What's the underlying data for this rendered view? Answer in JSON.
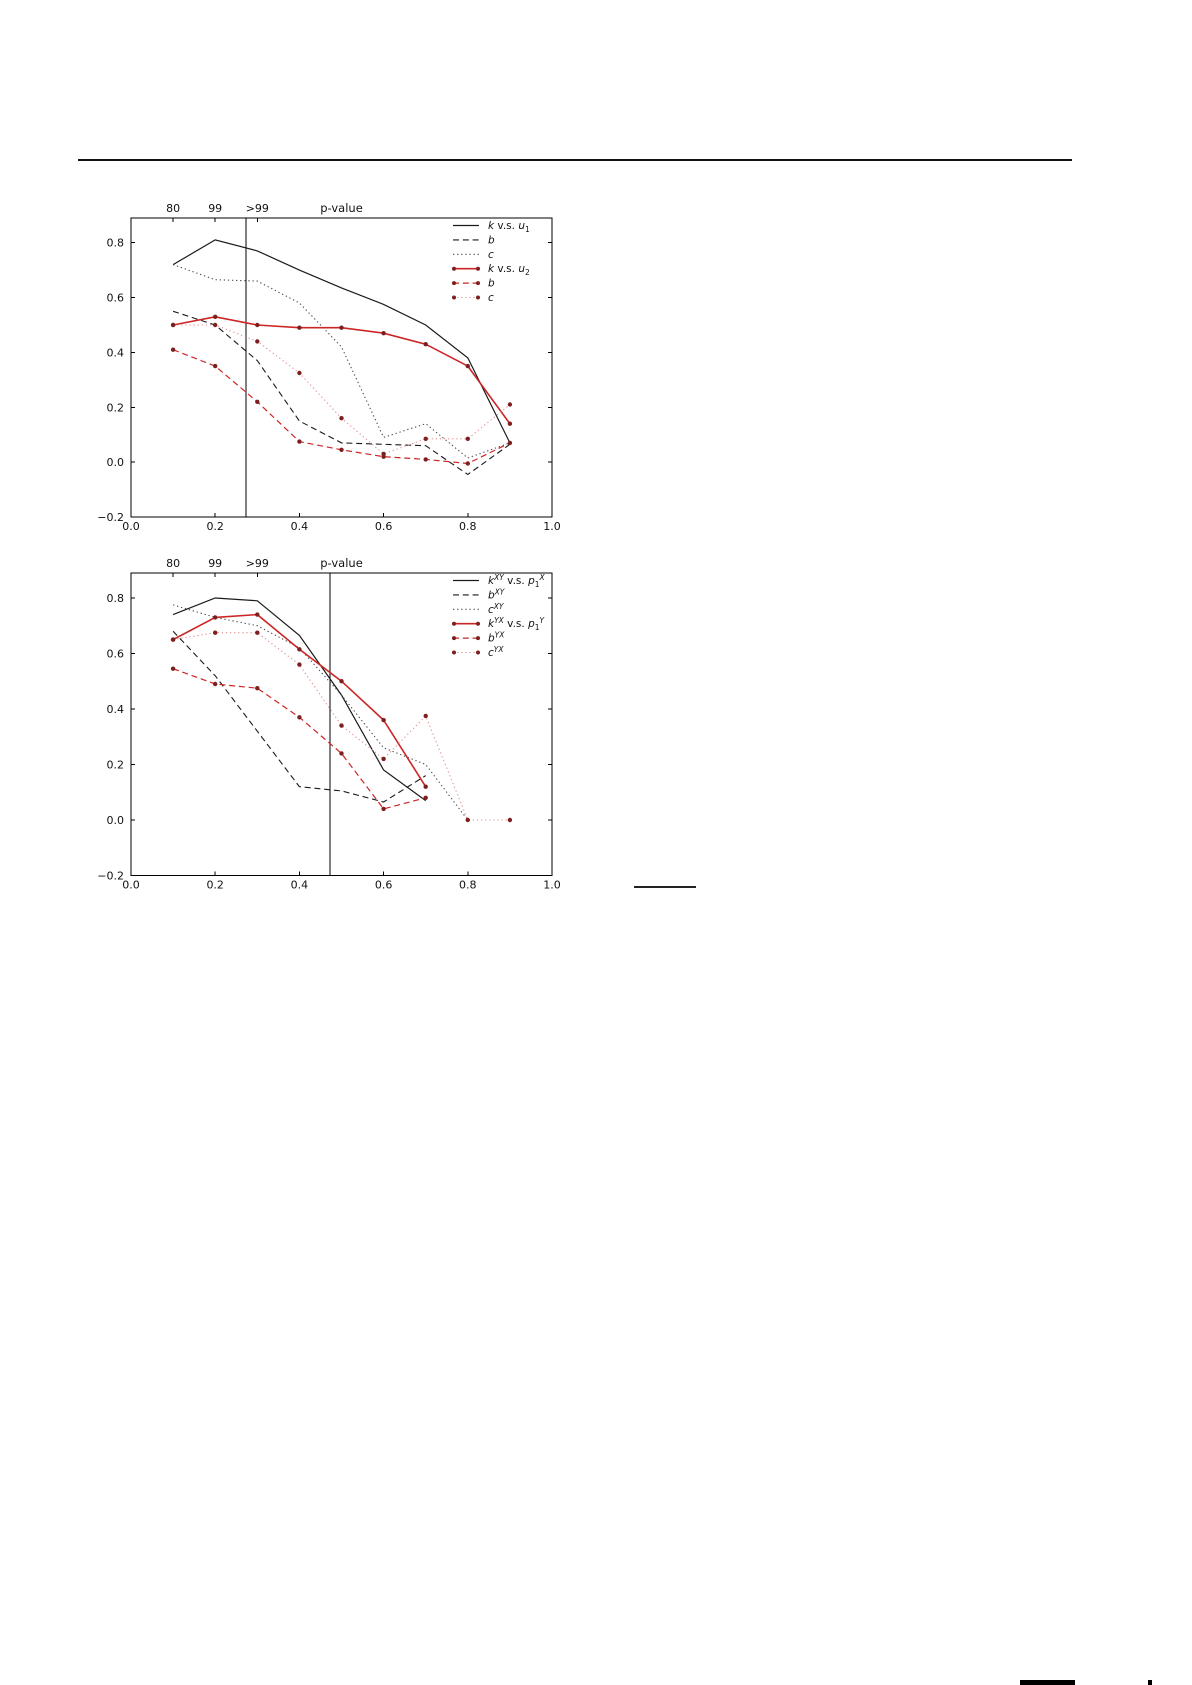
{
  "page": {
    "background": "#ffffff"
  },
  "colors": {
    "axis": "#000000",
    "black_solid": "#1a1a1a",
    "black_dashed": "#1a1a1a",
    "grey_dotted": "#4a4a4a",
    "red_solid": "#cc2525",
    "red_dashed": "#cc2525",
    "pink_dotted": "#e59393",
    "marker": "#7d1f1f"
  },
  "chart_data": [
    {
      "type": "line",
      "top_axis": {
        "title": "p-value",
        "title_x": 0.5,
        "ticks": [
          {
            "v": 0.1,
            "label": "80"
          },
          {
            "v": 0.2,
            "label": "99"
          },
          {
            "v": 0.3,
            "label": ">99"
          }
        ]
      },
      "xlim": [
        0.0,
        1.0
      ],
      "ylim": [
        -0.2,
        0.89
      ],
      "xticks": [
        {
          "v": 0.0,
          "label": "0.0"
        },
        {
          "v": 0.2,
          "label": "0.2"
        },
        {
          "v": 0.4,
          "label": "0.4"
        },
        {
          "v": 0.6,
          "label": "0.6"
        },
        {
          "v": 0.8,
          "label": "0.8"
        },
        {
          "v": 1.0,
          "label": "1.0"
        }
      ],
      "yticks": [
        {
          "v": -0.2,
          "label": "−0.2"
        },
        {
          "v": 0.0,
          "label": "0.0"
        },
        {
          "v": 0.2,
          "label": "0.2"
        },
        {
          "v": 0.4,
          "label": "0.4"
        },
        {
          "v": 0.6,
          "label": "0.6"
        },
        {
          "v": 0.8,
          "label": "0.8"
        }
      ],
      "vline_x": 0.273,
      "grid": false,
      "legend_position": "upper-right",
      "series": [
        {
          "id": "k-vs-u1",
          "colorKey": "black_solid",
          "dash": "solid",
          "width": 1.2,
          "markers": false,
          "label_parts": [
            {
              "t": "k",
              "s": "i"
            },
            {
              "t": " v.s. ",
              "s": "r"
            },
            {
              "t": "u",
              "s": "i"
            },
            {
              "t": "1",
              "s": "sub"
            }
          ],
          "x": [
            0.1,
            0.2,
            0.3,
            0.4,
            0.5,
            0.6,
            0.7,
            0.8,
            0.9
          ],
          "y": [
            0.72,
            0.81,
            0.77,
            0.7,
            0.635,
            0.575,
            0.5,
            0.38,
            0.07
          ]
        },
        {
          "id": "b-black",
          "colorKey": "black_dashed",
          "dash": "dashed",
          "width": 1.1,
          "markers": false,
          "label_parts": [
            {
              "t": "b",
              "s": "i"
            }
          ],
          "x": [
            0.1,
            0.2,
            0.3,
            0.4,
            0.5,
            0.6,
            0.7,
            0.8,
            0.9
          ],
          "y": [
            0.55,
            0.5,
            0.37,
            0.15,
            0.07,
            0.065,
            0.06,
            -0.045,
            0.065
          ]
        },
        {
          "id": "c-black",
          "colorKey": "grey_dotted",
          "dash": "dotted",
          "width": 1.1,
          "markers": false,
          "label_parts": [
            {
              "t": "c",
              "s": "i"
            }
          ],
          "x": [
            0.1,
            0.2,
            0.3,
            0.4,
            0.5,
            0.6,
            0.7,
            0.8,
            0.9
          ],
          "y": [
            0.72,
            0.665,
            0.66,
            0.58,
            0.42,
            0.09,
            0.14,
            0.015,
            0.07
          ]
        },
        {
          "id": "k-vs-u2",
          "colorKey": "red_solid",
          "dash": "solid",
          "width": 1.6,
          "markers": true,
          "label_parts": [
            {
              "t": "k",
              "s": "i"
            },
            {
              "t": " v.s. ",
              "s": "r"
            },
            {
              "t": "u",
              "s": "i"
            },
            {
              "t": "2",
              "s": "sub"
            }
          ],
          "x": [
            0.1,
            0.2,
            0.3,
            0.4,
            0.5,
            0.6,
            0.7,
            0.8,
            0.9
          ],
          "y": [
            0.5,
            0.53,
            0.5,
            0.49,
            0.49,
            0.47,
            0.43,
            0.35,
            0.14
          ]
        },
        {
          "id": "b-red",
          "colorKey": "red_dashed",
          "dash": "dashed",
          "width": 1.2,
          "markers": true,
          "label_parts": [
            {
              "t": "b",
              "s": "i"
            }
          ],
          "x": [
            0.1,
            0.2,
            0.3,
            0.4,
            0.5,
            0.6,
            0.7,
            0.8,
            0.9
          ],
          "y": [
            0.41,
            0.35,
            0.22,
            0.075,
            0.045,
            0.02,
            0.01,
            -0.005,
            0.07
          ]
        },
        {
          "id": "c-red",
          "colorKey": "pink_dotted",
          "dash": "dotted",
          "width": 1.1,
          "markers": true,
          "label_parts": [
            {
              "t": "c",
              "s": "i"
            }
          ],
          "x": [
            0.1,
            0.2,
            0.3,
            0.4,
            0.5,
            0.6,
            0.7,
            0.8,
            0.9
          ],
          "y": [
            0.5,
            0.5,
            0.44,
            0.325,
            0.16,
            0.03,
            0.085,
            0.085,
            0.21
          ]
        }
      ]
    },
    {
      "type": "line",
      "top_axis": {
        "title": "p-value",
        "title_x": 0.5,
        "ticks": [
          {
            "v": 0.1,
            "label": "80"
          },
          {
            "v": 0.2,
            "label": "99"
          },
          {
            "v": 0.3,
            "label": ">99"
          }
        ]
      },
      "xlim": [
        0.0,
        1.0
      ],
      "ylim": [
        -0.2,
        0.89
      ],
      "xticks": [
        {
          "v": 0.0,
          "label": "0.0"
        },
        {
          "v": 0.2,
          "label": "0.2"
        },
        {
          "v": 0.4,
          "label": "0.4"
        },
        {
          "v": 0.6,
          "label": "0.6"
        },
        {
          "v": 0.8,
          "label": "0.8"
        },
        {
          "v": 1.0,
          "label": "1.0"
        }
      ],
      "yticks": [
        {
          "v": -0.2,
          "label": "−0.2"
        },
        {
          "v": 0.0,
          "label": "0.0"
        },
        {
          "v": 0.2,
          "label": "0.2"
        },
        {
          "v": 0.4,
          "label": "0.4"
        },
        {
          "v": 0.6,
          "label": "0.6"
        },
        {
          "v": 0.8,
          "label": "0.8"
        }
      ],
      "vline_x": 0.473,
      "grid": false,
      "legend_position": "upper-right",
      "series": [
        {
          "id": "kXY-vs-p1X",
          "colorKey": "black_solid",
          "dash": "solid",
          "width": 1.2,
          "markers": false,
          "label_parts": [
            {
              "t": "k",
              "s": "i"
            },
            {
              "t": "XY",
              "s": "isup"
            },
            {
              "t": " v.s. ",
              "s": "r"
            },
            {
              "t": "p",
              "s": "i"
            },
            {
              "t": "1",
              "s": "sub"
            },
            {
              "t": "X",
              "s": "isup"
            }
          ],
          "x": [
            0.1,
            0.2,
            0.3,
            0.4,
            0.5,
            0.6,
            0.7
          ],
          "y": [
            0.74,
            0.8,
            0.79,
            0.665,
            0.45,
            0.18,
            0.07
          ]
        },
        {
          "id": "bXY",
          "colorKey": "black_dashed",
          "dash": "dashed",
          "width": 1.1,
          "markers": false,
          "label_parts": [
            {
              "t": "b",
              "s": "i"
            },
            {
              "t": "XY",
              "s": "isup"
            }
          ],
          "x": [
            0.1,
            0.2,
            0.3,
            0.4,
            0.5,
            0.6,
            0.7
          ],
          "y": [
            0.68,
            0.52,
            0.32,
            0.12,
            0.105,
            0.065,
            0.16
          ]
        },
        {
          "id": "cXY",
          "colorKey": "grey_dotted",
          "dash": "dotted",
          "width": 1.1,
          "markers": false,
          "label_parts": [
            {
              "t": "c",
              "s": "i"
            },
            {
              "t": "XY",
              "s": "isup"
            }
          ],
          "x": [
            0.1,
            0.2,
            0.3,
            0.4,
            0.5,
            0.6,
            0.7,
            0.8
          ],
          "y": [
            0.775,
            0.73,
            0.7,
            0.62,
            0.45,
            0.26,
            0.2,
            0.0
          ]
        },
        {
          "id": "kYX-vs-p1Y",
          "colorKey": "red_solid",
          "dash": "solid",
          "width": 1.6,
          "markers": true,
          "label_parts": [
            {
              "t": "k",
              "s": "i"
            },
            {
              "t": "YX",
              "s": "isup"
            },
            {
              "t": " v.s. ",
              "s": "r"
            },
            {
              "t": "p",
              "s": "i"
            },
            {
              "t": "1",
              "s": "sub"
            },
            {
              "t": "Y",
              "s": "isup"
            }
          ],
          "x": [
            0.1,
            0.2,
            0.3,
            0.4,
            0.5,
            0.6,
            0.7
          ],
          "y": [
            0.65,
            0.73,
            0.74,
            0.615,
            0.5,
            0.36,
            0.12
          ]
        },
        {
          "id": "bYX",
          "colorKey": "red_dashed",
          "dash": "dashed",
          "width": 1.2,
          "markers": true,
          "label_parts": [
            {
              "t": "b",
              "s": "i"
            },
            {
              "t": "YX",
              "s": "isup"
            }
          ],
          "x": [
            0.1,
            0.2,
            0.3,
            0.4,
            0.5,
            0.6,
            0.7
          ],
          "y": [
            0.545,
            0.49,
            0.475,
            0.37,
            0.24,
            0.04,
            0.08
          ]
        },
        {
          "id": "cYX",
          "colorKey": "pink_dotted",
          "dash": "dotted",
          "width": 1.1,
          "markers": true,
          "label_parts": [
            {
              "t": "c",
              "s": "i"
            },
            {
              "t": "YX",
              "s": "isup"
            }
          ],
          "x": [
            0.1,
            0.2,
            0.3,
            0.4,
            0.5,
            0.6,
            0.7,
            0.8,
            0.9
          ],
          "y": [
            0.65,
            0.675,
            0.675,
            0.56,
            0.34,
            0.22,
            0.375,
            0.0,
            0.0
          ]
        }
      ]
    }
  ]
}
